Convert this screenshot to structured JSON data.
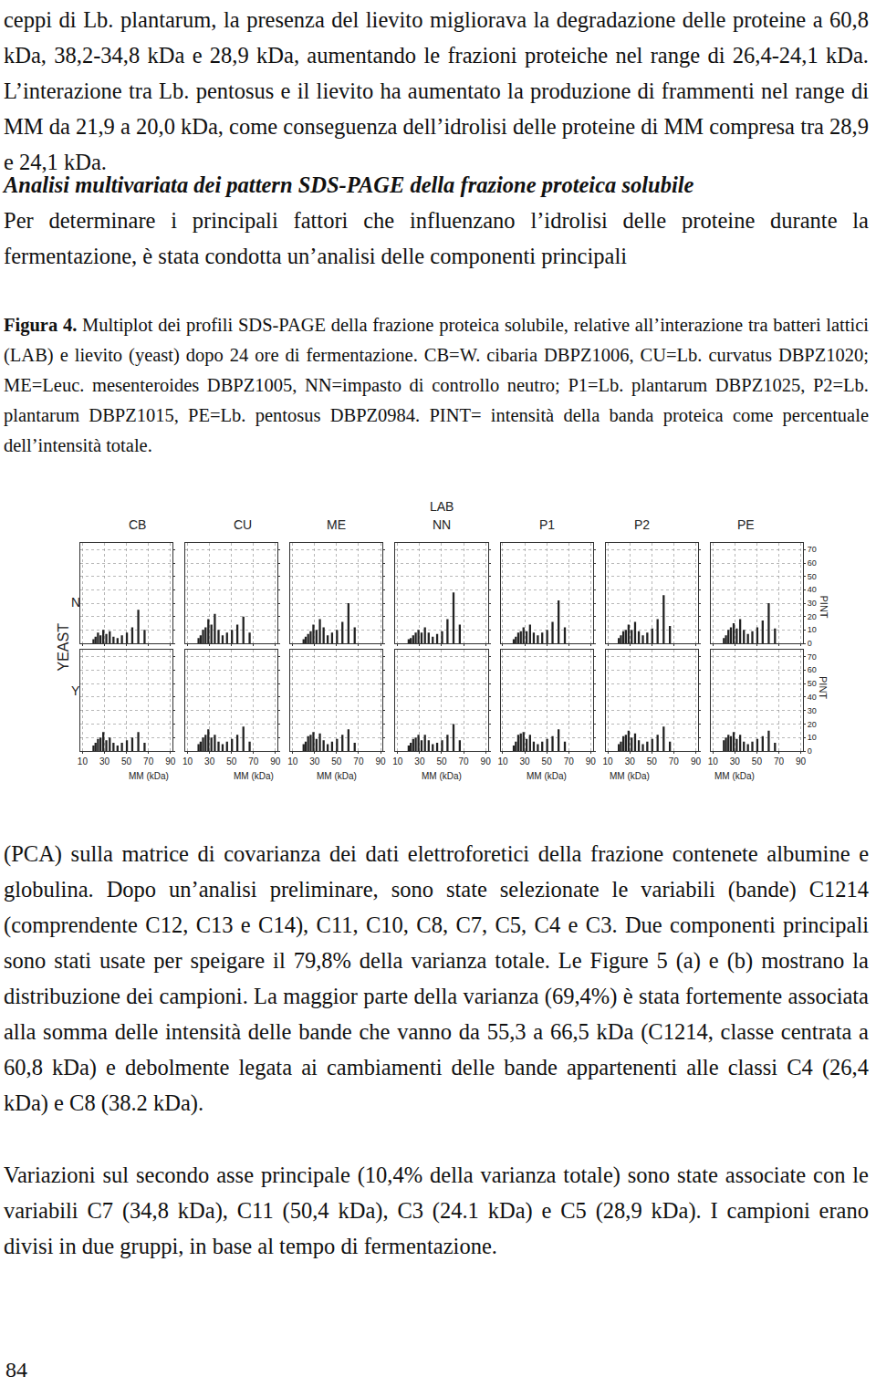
{
  "page": {
    "paragraph_1": "ceppi di Lb. plantarum, la presenza del lievito migliorava la degradazione delle proteine a 60,8 kDa, 38,2-34,8 kDa e 28,9 kDa, aumentando le frazioni proteiche nel range di 26,4-24,1 kDa. L’interazione tra Lb. pentosus e il lievito ha aumentato la produzione di frammenti nel range di MM da 21,9 a 20,0 kDa, come conseguenza dell’idrolisi delle proteine di MM compresa tra 28,9 e 24,1 kDa.",
    "heading": "Analisi multivariata dei pattern SDS-PAGE della frazione proteica solubile",
    "paragraph_2_start": "Per determinare i principali fattori che influenzano l’idrolisi delle proteine durante la fermentazione, è stata condotta un’analisi delle componenti principali",
    "caption_label": "Figura 4.",
    "caption_text": "Multiplot dei profili SDS-PAGE della frazione proteica solubile, relative all’interazione tra batteri lattici (LAB) e lievito (yeast) dopo 24 ore di fermentazione. CB=W. cibaria DBPZ1006, CU=Lb. curvatus DBPZ1020; ME=Leuc. mesenteroides DBPZ1005, NN=impasto di controllo neutro; P1=Lb. plantarum DBPZ1025, P2=Lb. plantarum DBPZ1015, PE=Lb. pentosus DBPZ0984. PINT= intensità della banda proteica come percentuale dell’intensità totale.",
    "paragraph_2_end": "(PCA) sulla matrice di covarianza dei dati elettroforetici della frazione contenete albumine e globulina. Dopo un’analisi preliminare, sono state selezionate le variabili (bande) C1214 (comprendente C12, C13 e C14), C11, C10, C8, C7, C5, C4 e C3. Due componenti principali sono stati usate per speigare il 79,8% della varianza totale. Le Figure 5 (a) e (b) mostrano la distribuzione dei campioni. La maggior parte della varianza (69,4%) è stata fortemente associata alla somma delle intensità delle bande che vanno da 55,3 a 66,5 kDa (C1214, classe centrata a 60,8 kDa) e debolmente legata ai cambiamenti delle bande appartenenti alle classi C4 (26,4 kDa) e C8 (38.2 kDa).",
    "paragraph_3": "Variazioni sul secondo asse principale (10,4% della varianza totale) sono state associate con le variabili C7 (34,8 kDa), C11 (50,4 kDa), C3 (24.1 kDa) e C5 (28,9 kDa). I campioni erano divisi in due gruppi, in base al tempo di fermentazione.",
    "page_number": "84"
  },
  "figure": {
    "column_header": "LAB",
    "columns": [
      "CB",
      "CU",
      "ME",
      "NN",
      "P1",
      "P2",
      "PE"
    ],
    "row_header": "YEAST",
    "rows": [
      "N",
      "Y"
    ],
    "x_label": "MM (kDa)",
    "y_label": "PINT"
  },
  "chart_data": [
    {
      "type": "bar",
      "x": [
        20.0,
        21.9,
        24.1,
        26.4,
        28.9,
        31.7,
        34.8,
        38.2,
        41.9,
        45.9,
        50.4,
        55.3,
        60.8,
        66.5
      ],
      "values": [
        3,
        5,
        8,
        6,
        10,
        7,
        9,
        5,
        4,
        6,
        8,
        12,
        25,
        10
      ],
      "color": "#222222",
      "xlim": [
        8,
        92
      ],
      "xticks": [
        10,
        30,
        50,
        70,
        90
      ],
      "ylim": [
        0,
        75
      ],
      "yticks": [
        0,
        10,
        20,
        30,
        40,
        50,
        60,
        70
      ],
      "grid": true,
      "tick_labels": false
    },
    {
      "type": "bar",
      "x": [
        20.0,
        21.9,
        24.1,
        26.4,
        28.9,
        31.7,
        34.8,
        38.2,
        41.9,
        45.9,
        50.4,
        55.3,
        60.8,
        66.5
      ],
      "values": [
        4,
        6,
        10,
        12,
        18,
        14,
        22,
        10,
        6,
        8,
        10,
        14,
        20,
        8
      ],
      "color": "#222222",
      "xlim": [
        8,
        92
      ],
      "xticks": [
        10,
        30,
        50,
        70,
        90
      ],
      "ylim": [
        0,
        75
      ],
      "yticks": [
        0,
        10,
        20,
        30,
        40,
        50,
        60,
        70
      ],
      "grid": true,
      "tick_labels": false
    },
    {
      "type": "bar",
      "x": [
        20.0,
        21.9,
        24.1,
        26.4,
        28.9,
        31.7,
        34.8,
        38.2,
        41.9,
        45.9,
        50.4,
        55.3,
        60.8,
        66.5
      ],
      "values": [
        3,
        5,
        7,
        9,
        14,
        10,
        18,
        12,
        6,
        8,
        10,
        16,
        30,
        12
      ],
      "color": "#222222",
      "xlim": [
        8,
        92
      ],
      "xticks": [
        10,
        30,
        50,
        70,
        90
      ],
      "ylim": [
        0,
        75
      ],
      "yticks": [
        0,
        10,
        20,
        30,
        40,
        50,
        60,
        70
      ],
      "grid": true,
      "tick_labels": false
    },
    {
      "type": "bar",
      "x": [
        20.0,
        21.9,
        24.1,
        26.4,
        28.9,
        31.7,
        34.8,
        38.2,
        41.9,
        45.9,
        50.4,
        55.3,
        60.8,
        66.5
      ],
      "values": [
        3,
        4,
        6,
        8,
        10,
        8,
        12,
        8,
        5,
        7,
        9,
        18,
        38,
        14
      ],
      "color": "#222222",
      "xlim": [
        8,
        92
      ],
      "xticks": [
        10,
        30,
        50,
        70,
        90
      ],
      "ylim": [
        0,
        75
      ],
      "yticks": [
        0,
        10,
        20,
        30,
        40,
        50,
        60,
        70
      ],
      "grid": true,
      "tick_labels": false
    },
    {
      "type": "bar",
      "x": [
        20.0,
        21.9,
        24.1,
        26.4,
        28.9,
        31.7,
        34.8,
        38.2,
        41.9,
        45.9,
        50.4,
        55.3,
        60.8,
        66.5
      ],
      "values": [
        3,
        5,
        8,
        9,
        12,
        9,
        14,
        8,
        6,
        8,
        10,
        16,
        32,
        12
      ],
      "color": "#222222",
      "xlim": [
        8,
        92
      ],
      "xticks": [
        10,
        30,
        50,
        70,
        90
      ],
      "ylim": [
        0,
        75
      ],
      "yticks": [
        0,
        10,
        20,
        30,
        40,
        50,
        60,
        70
      ],
      "grid": true,
      "tick_labels": false
    },
    {
      "type": "bar",
      "x": [
        20.0,
        21.9,
        24.1,
        26.4,
        28.9,
        31.7,
        34.8,
        38.2,
        41.9,
        45.9,
        50.4,
        55.3,
        60.8,
        66.5
      ],
      "values": [
        4,
        6,
        9,
        10,
        14,
        10,
        16,
        9,
        6,
        8,
        11,
        18,
        36,
        13
      ],
      "color": "#222222",
      "xlim": [
        8,
        92
      ],
      "xticks": [
        10,
        30,
        50,
        70,
        90
      ],
      "ylim": [
        0,
        75
      ],
      "yticks": [
        0,
        10,
        20,
        30,
        40,
        50,
        60,
        70
      ],
      "grid": true,
      "tick_labels": false
    },
    {
      "type": "bar",
      "x": [
        20.0,
        21.9,
        24.1,
        26.4,
        28.9,
        31.7,
        34.8,
        38.2,
        41.9,
        45.9,
        50.4,
        55.3,
        60.8,
        66.5
      ],
      "values": [
        4,
        6,
        10,
        12,
        15,
        11,
        18,
        10,
        7,
        9,
        12,
        17,
        30,
        11
      ],
      "color": "#222222",
      "xlim": [
        8,
        92
      ],
      "xticks": [
        10,
        30,
        50,
        70,
        90
      ],
      "ylim": [
        0,
        75
      ],
      "yticks": [
        0,
        10,
        20,
        30,
        40,
        50,
        60,
        70
      ],
      "grid": true,
      "tick_labels": "y"
    },
    {
      "type": "bar",
      "x": [
        20.0,
        21.9,
        24.1,
        26.4,
        28.9,
        31.7,
        34.8,
        38.2,
        41.9,
        45.9,
        50.4,
        55.3,
        60.8,
        66.5
      ],
      "values": [
        4,
        6,
        9,
        10,
        14,
        8,
        10,
        6,
        4,
        6,
        8,
        10,
        14,
        6
      ],
      "color": "#222222",
      "xlim": [
        8,
        92
      ],
      "xticks": [
        10,
        30,
        50,
        70,
        90
      ],
      "ylim": [
        0,
        75
      ],
      "yticks": [
        0,
        10,
        20,
        30,
        40,
        50,
        60,
        70
      ],
      "grid": true,
      "tick_labels": "x"
    },
    {
      "type": "bar",
      "x": [
        20.0,
        21.9,
        24.1,
        26.4,
        28.9,
        31.7,
        34.8,
        38.2,
        41.9,
        45.9,
        50.4,
        55.3,
        60.8,
        66.5
      ],
      "values": [
        5,
        7,
        10,
        12,
        16,
        10,
        12,
        7,
        5,
        7,
        9,
        12,
        18,
        7
      ],
      "color": "#222222",
      "xlim": [
        8,
        92
      ],
      "xticks": [
        10,
        30,
        50,
        70,
        90
      ],
      "ylim": [
        0,
        75
      ],
      "yticks": [
        0,
        10,
        20,
        30,
        40,
        50,
        60,
        70
      ],
      "grid": true,
      "tick_labels": "x"
    },
    {
      "type": "bar",
      "x": [
        20.0,
        21.9,
        24.1,
        26.4,
        28.9,
        31.7,
        34.8,
        38.2,
        41.9,
        45.9,
        50.4,
        55.3,
        60.8,
        66.5
      ],
      "values": [
        5,
        7,
        11,
        12,
        14,
        9,
        13,
        8,
        5,
        7,
        9,
        12,
        16,
        6
      ],
      "color": "#222222",
      "xlim": [
        8,
        92
      ],
      "xticks": [
        10,
        30,
        50,
        70,
        90
      ],
      "ylim": [
        0,
        75
      ],
      "yticks": [
        0,
        10,
        20,
        30,
        40,
        50,
        60,
        70
      ],
      "grid": true,
      "tick_labels": "x"
    },
    {
      "type": "bar",
      "x": [
        20.0,
        21.9,
        24.1,
        26.4,
        28.9,
        31.7,
        34.8,
        38.2,
        41.9,
        45.9,
        50.4,
        55.3,
        60.8,
        66.5
      ],
      "values": [
        4,
        6,
        9,
        10,
        12,
        8,
        12,
        8,
        5,
        6,
        8,
        12,
        20,
        8
      ],
      "color": "#222222",
      "xlim": [
        8,
        92
      ],
      "xticks": [
        10,
        30,
        50,
        70,
        90
      ],
      "ylim": [
        0,
        75
      ],
      "yticks": [
        0,
        10,
        20,
        30,
        40,
        50,
        60,
        70
      ],
      "grid": true,
      "tick_labels": "x"
    },
    {
      "type": "bar",
      "x": [
        20.0,
        21.9,
        24.1,
        26.4,
        28.9,
        31.7,
        34.8,
        38.2,
        41.9,
        45.9,
        50.4,
        55.3,
        60.8,
        66.5
      ],
      "values": [
        4,
        7,
        12,
        13,
        14,
        9,
        12,
        7,
        5,
        7,
        9,
        11,
        16,
        7
      ],
      "color": "#222222",
      "xlim": [
        8,
        92
      ],
      "xticks": [
        10,
        30,
        50,
        70,
        90
      ],
      "ylim": [
        0,
        75
      ],
      "yticks": [
        0,
        10,
        20,
        30,
        40,
        50,
        60,
        70
      ],
      "grid": true,
      "tick_labels": "x"
    },
    {
      "type": "bar",
      "x": [
        20.0,
        21.9,
        24.1,
        26.4,
        28.9,
        31.7,
        34.8,
        38.2,
        41.9,
        45.9,
        50.4,
        55.3,
        60.8,
        66.5
      ],
      "values": [
        5,
        7,
        11,
        12,
        15,
        10,
        13,
        8,
        5,
        7,
        9,
        12,
        18,
        7
      ],
      "color": "#222222",
      "xlim": [
        8,
        92
      ],
      "xticks": [
        10,
        30,
        50,
        70,
        90
      ],
      "ylim": [
        0,
        75
      ],
      "yticks": [
        0,
        10,
        20,
        30,
        40,
        50,
        60,
        70
      ],
      "grid": true,
      "tick_labels": "x"
    },
    {
      "type": "bar",
      "x": [
        20.0,
        21.9,
        24.1,
        26.4,
        28.9,
        31.7,
        34.8,
        38.2,
        41.9,
        45.9,
        50.4,
        55.3,
        60.8,
        66.5
      ],
      "values": [
        8,
        10,
        12,
        11,
        14,
        9,
        12,
        7,
        5,
        7,
        9,
        11,
        15,
        6
      ],
      "color": "#222222",
      "xlim": [
        8,
        92
      ],
      "xticks": [
        10,
        30,
        50,
        70,
        90
      ],
      "ylim": [
        0,
        75
      ],
      "yticks": [
        0,
        10,
        20,
        30,
        40,
        50,
        60,
        70
      ],
      "grid": true,
      "tick_labels": true
    }
  ]
}
